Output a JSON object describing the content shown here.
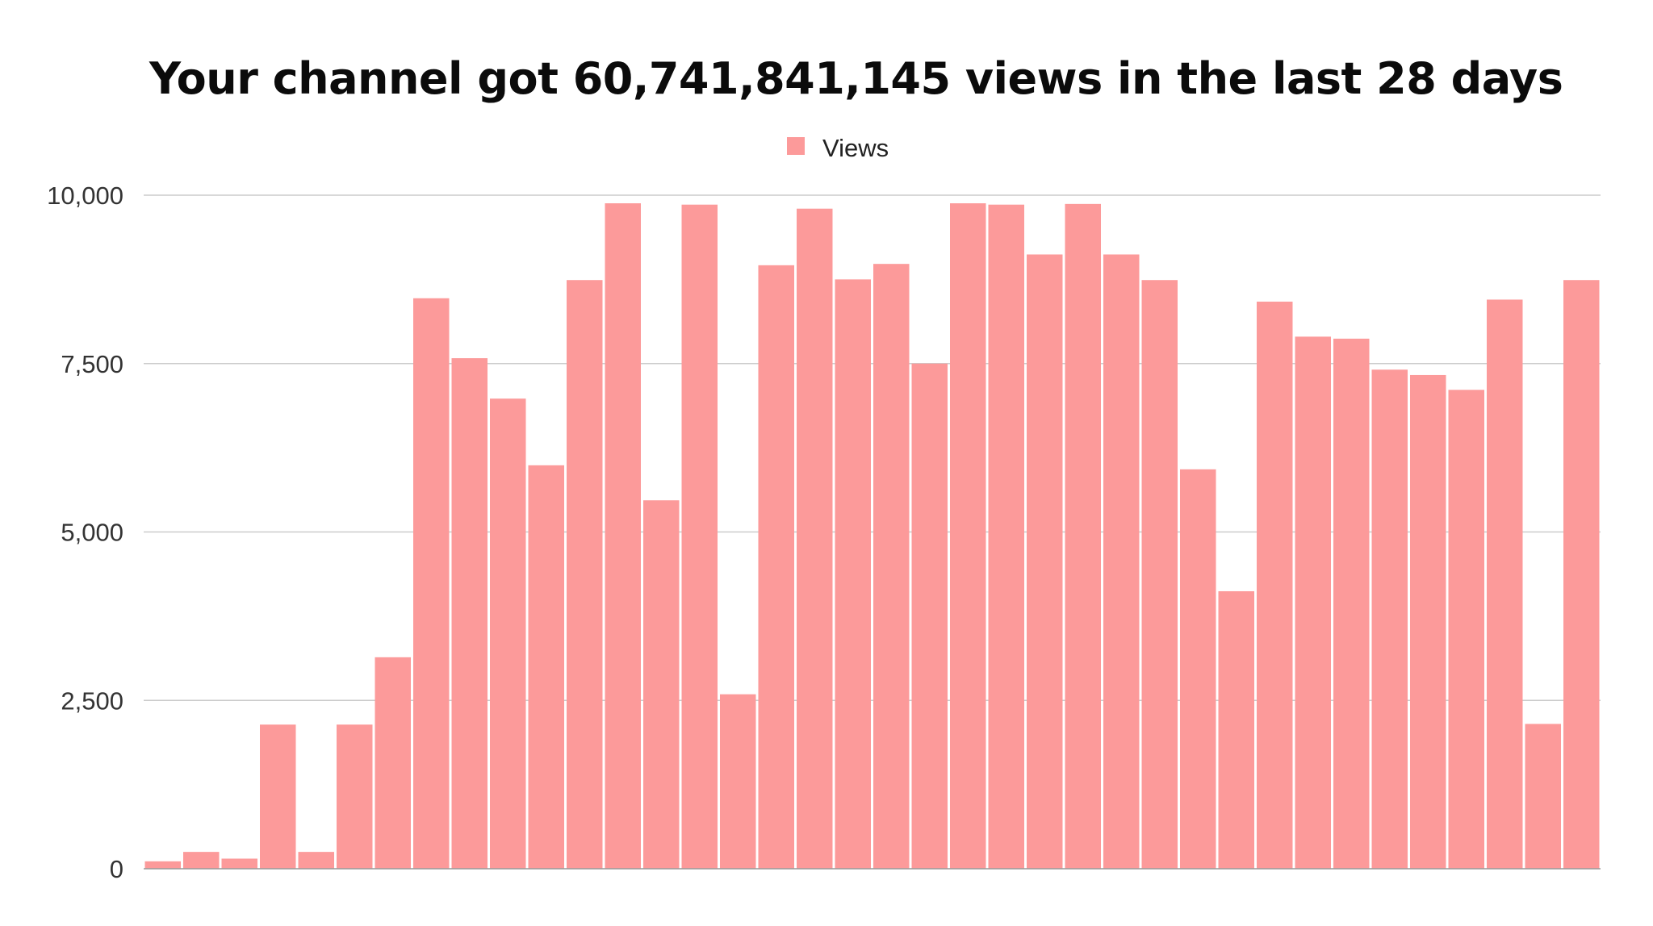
{
  "title": "Your channel got 60,741,841,145 views in the last 28 days",
  "colors": {
    "bar": "#fc9a9a",
    "gridline": "#cccccc",
    "baseline": "#999999",
    "title": "#0b0b0b"
  },
  "chart_data": {
    "type": "bar",
    "title": "Your channel got 60,741,841,145 views in the last 28 days",
    "xlabel": "",
    "ylabel": "",
    "ylim": [
      0,
      10000
    ],
    "yticks": [
      0,
      2500,
      5000,
      7500,
      10000
    ],
    "ytick_labels": [
      "0",
      "2,500",
      "5,000",
      "7,500",
      "10,000"
    ],
    "grid": true,
    "legend_position": "top-center",
    "series": [
      {
        "name": "Views",
        "color": "#fc9a9a",
        "values": [
          110,
          250,
          150,
          2140,
          250,
          2140,
          3140,
          8470,
          7580,
          6980,
          5990,
          8740,
          9880,
          5470,
          9860,
          2590,
          8960,
          9800,
          8750,
          8980,
          7500,
          9880,
          9860,
          9120,
          9870,
          9120,
          8740,
          5930,
          4120,
          8420,
          7900,
          7870,
          7410,
          7330,
          7110,
          8450,
          2150,
          8740
        ]
      }
    ]
  }
}
